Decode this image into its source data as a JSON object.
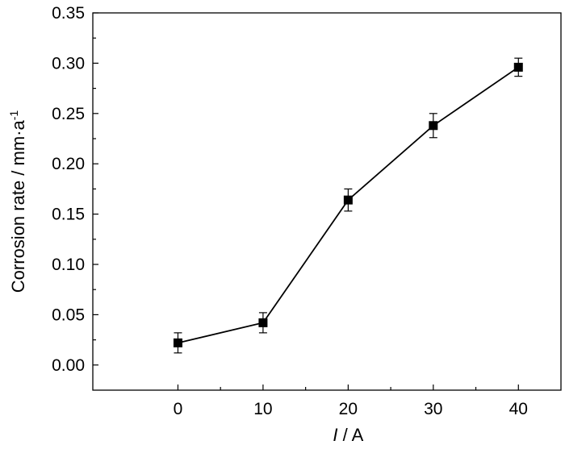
{
  "chart_data": {
    "type": "line",
    "title": "",
    "xlabel": {
      "italic": "I",
      "rest": " / A"
    },
    "ylabel": {
      "main": "Corrosion rate / mm·a",
      "superscript": "-1"
    },
    "xlim": [
      -10,
      45
    ],
    "ylim": [
      -0.025,
      0.35
    ],
    "xticks": [
      0,
      10,
      20,
      30,
      40
    ],
    "xtick_labels": [
      "0",
      "10",
      "20",
      "30",
      "40"
    ],
    "yticks": [
      0.0,
      0.05,
      0.1,
      0.15,
      0.2,
      0.25,
      0.3,
      0.35
    ],
    "ytick_labels": [
      "0.00",
      "0.05",
      "0.10",
      "0.15",
      "0.20",
      "0.25",
      "0.30",
      "0.35"
    ],
    "grid": false,
    "legend": "none",
    "series": [
      {
        "marker": "square",
        "color": "#000000",
        "x": [
          0,
          10,
          20,
          30,
          40
        ],
        "y": [
          0.022,
          0.042,
          0.164,
          0.238,
          0.296
        ],
        "error": [
          0.01,
          0.01,
          0.011,
          0.012,
          0.009
        ]
      }
    ]
  }
}
